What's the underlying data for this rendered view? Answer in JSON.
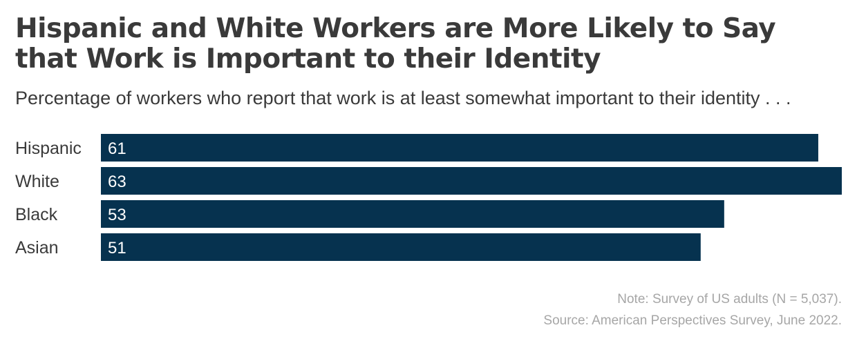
{
  "header": {
    "title": "Hispanic and White Workers are More Likely to Say that Work is Important to their Identity",
    "subtitle": "Percentage of workers who report that work is at least somewhat important to their identity . . ."
  },
  "chart_data": {
    "type": "bar",
    "orientation": "horizontal",
    "categories": [
      "Hispanic",
      "White",
      "Black",
      "Asian"
    ],
    "values": [
      61,
      63,
      53,
      51
    ],
    "data_labels": [
      "61",
      "63",
      "53",
      "51"
    ],
    "xlim": [
      0,
      63
    ],
    "grid": false,
    "legend": "none",
    "bar_color": "#06324f"
  },
  "footer": {
    "note": "Note: Survey of US adults (N = 5,037).",
    "source": "Source: American Perspectives Survey, June 2022."
  }
}
